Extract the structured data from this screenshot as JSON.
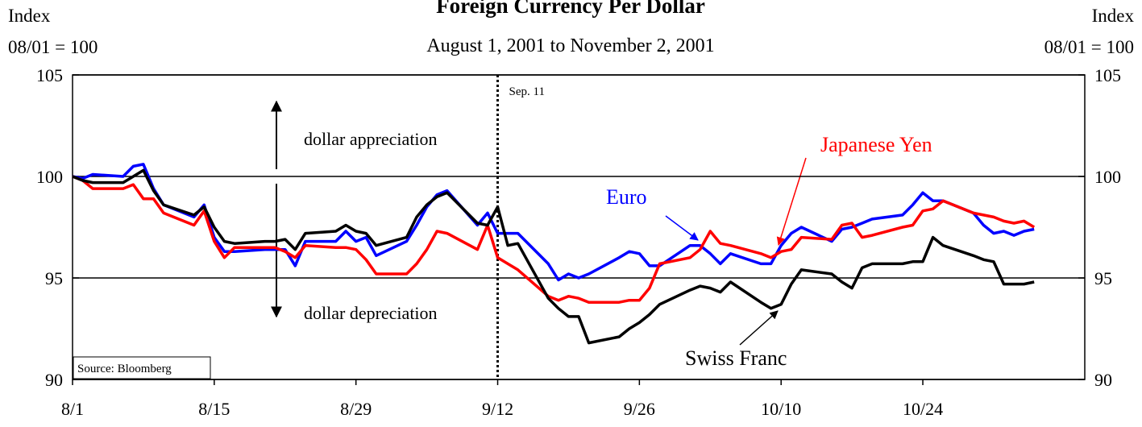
{
  "chart_data": {
    "type": "line",
    "title": "Foreign Currency Per Dollar",
    "subtitle": "August 1, 2001 to November 2, 2001",
    "y_label": [
      "Index",
      "08/01 = 100"
    ],
    "y2_label": [
      "Index",
      "08/01 = 100"
    ],
    "source": "Source: Bloomberg",
    "annotations": {
      "vline": 42,
      "vline_label": "Sep. 11",
      "up": "dollar appreciation",
      "down": "dollar depreciation"
    },
    "xlim": [
      0,
      100
    ],
    "xticks": [
      {
        "value": 0,
        "label": "8/1"
      },
      {
        "value": 14,
        "label": "8/15"
      },
      {
        "value": 28,
        "label": "8/29"
      },
      {
        "value": 42,
        "label": "9/12"
      },
      {
        "value": 56,
        "label": "9/26"
      },
      {
        "value": 70,
        "label": "10/10"
      },
      {
        "value": 84,
        "label": "10/24"
      }
    ],
    "ylim": [
      90,
      105
    ],
    "yticks": [
      90,
      95,
      100,
      105
    ],
    "y2lim": [
      90,
      105
    ],
    "y2ticks": [
      90,
      95,
      100,
      105
    ],
    "grid": true,
    "x": [
      0,
      1,
      2,
      5,
      6,
      7,
      8,
      9,
      12,
      13,
      14,
      15,
      16,
      19,
      20,
      21,
      22,
      23,
      26,
      27,
      28,
      29,
      30,
      33,
      34,
      35,
      36,
      37,
      40,
      41,
      42,
      43,
      44,
      47,
      48,
      49,
      50,
      51,
      54,
      55,
      56,
      57,
      58,
      61,
      62,
      63,
      64,
      65,
      68,
      69,
      70,
      71,
      72,
      75,
      76,
      77,
      78,
      79,
      82,
      83,
      84,
      85,
      86,
      89,
      90,
      91,
      92,
      93,
      94,
      95
    ],
    "series": [
      {
        "name": "Euro",
        "color": "#0000ff",
        "values": [
          100,
          99.9,
          100.1,
          100.0,
          100.5,
          100.6,
          99.4,
          98.6,
          98.0,
          98.6,
          97.0,
          96.3,
          96.3,
          96.4,
          96.4,
          96.4,
          95.6,
          96.8,
          96.8,
          97.3,
          96.8,
          97.0,
          96.1,
          96.8,
          97.6,
          98.5,
          99.1,
          99.3,
          97.6,
          98.2,
          97.2,
          97.2,
          97.2,
          95.7,
          94.9,
          95.2,
          95.0,
          95.2,
          96.0,
          96.3,
          96.2,
          95.6,
          95.6,
          96.6,
          96.6,
          96.2,
          95.7,
          96.2,
          95.7,
          95.7,
          96.6,
          97.2,
          97.5,
          96.8,
          97.4,
          97.5,
          97.7,
          97.9,
          98.1,
          98.6,
          99.2,
          98.8,
          98.8,
          98.2,
          97.6,
          97.2,
          97.3,
          97.1,
          97.3,
          97.4
        ]
      },
      {
        "name": "Japanese Yen",
        "color": "#ff0000",
        "values": [
          100,
          99.8,
          99.4,
          99.4,
          99.6,
          98.9,
          98.9,
          98.2,
          97.6,
          98.3,
          96.8,
          96.0,
          96.5,
          96.5,
          96.5,
          96.3,
          96.0,
          96.6,
          96.5,
          96.5,
          96.4,
          95.9,
          95.2,
          95.2,
          95.7,
          96.4,
          97.3,
          97.2,
          96.4,
          97.6,
          96.0,
          95.7,
          95.4,
          94.1,
          93.9,
          94.1,
          94.0,
          93.8,
          93.8,
          93.9,
          93.9,
          94.5,
          95.7,
          96.0,
          96.4,
          97.3,
          96.7,
          96.6,
          96.2,
          96.0,
          96.3,
          96.4,
          97.0,
          96.9,
          97.6,
          97.7,
          97.0,
          97.1,
          97.5,
          97.6,
          98.3,
          98.4,
          98.8,
          98.2,
          98.1,
          98.0,
          97.8,
          97.7,
          97.8,
          97.5
        ]
      },
      {
        "name": "Swiss Franc",
        "color": "#000000",
        "values": [
          100,
          99.8,
          99.7,
          99.7,
          100.0,
          100.3,
          99.3,
          98.6,
          98.1,
          98.5,
          97.5,
          96.8,
          96.7,
          96.8,
          96.8,
          96.9,
          96.4,
          97.2,
          97.3,
          97.6,
          97.3,
          97.2,
          96.6,
          97.0,
          98.0,
          98.6,
          99.0,
          99.2,
          97.7,
          97.6,
          98.5,
          96.6,
          96.7,
          94.0,
          93.5,
          93.1,
          93.1,
          91.8,
          92.1,
          92.5,
          92.8,
          93.2,
          93.7,
          94.4,
          94.6,
          94.5,
          94.3,
          94.8,
          93.8,
          93.5,
          93.7,
          94.7,
          95.4,
          95.2,
          94.8,
          94.5,
          95.5,
          95.7,
          95.7,
          95.8,
          95.8,
          97.0,
          96.6,
          96.1,
          95.9,
          95.8,
          94.7,
          94.7,
          94.7,
          94.8
        ]
      }
    ]
  }
}
